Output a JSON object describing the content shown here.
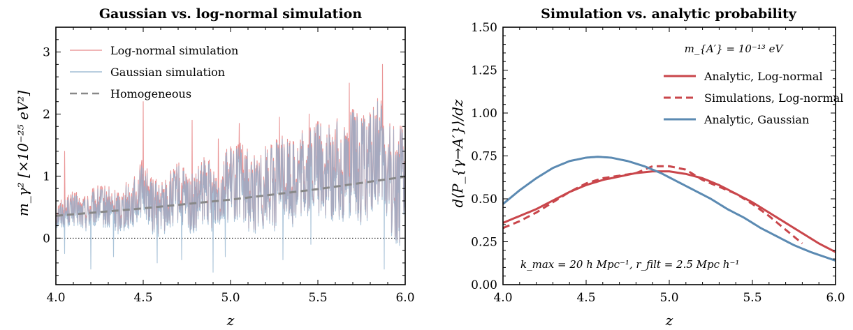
{
  "chart_data": [
    {
      "type": "line",
      "title": "Gaussian vs. log-normal simulation",
      "xlabel": "z",
      "ylabel": "m_γ² [×10⁻²⁵ eV²]",
      "xlim": [
        4.0,
        6.0
      ],
      "ylim": [
        -0.75,
        3.4
      ],
      "x_ticks": [
        "4.0",
        "4.5",
        "5.0",
        "5.5",
        "6.0"
      ],
      "y_ticks": [
        "0",
        "1",
        "2",
        "3"
      ],
      "legend_position": "top-left",
      "reference_line": {
        "y": 0,
        "style": "dotted"
      },
      "series": [
        {
          "name": "Log-normal simulation",
          "color": "#e8898b",
          "style": "solid",
          "noisy": true,
          "x": [
            4.0,
            4.05,
            4.1,
            4.15,
            4.2,
            4.25,
            4.3,
            4.35,
            4.4,
            4.45,
            4.5,
            4.55,
            4.6,
            4.65,
            4.7,
            4.75,
            4.8,
            4.85,
            4.9,
            4.95,
            5.0,
            5.05,
            5.1,
            5.15,
            5.2,
            5.25,
            5.3,
            5.35,
            5.4,
            5.45,
            5.5,
            5.55,
            5.6,
            5.65,
            5.7,
            5.75,
            5.8,
            5.85,
            5.9,
            5.95,
            6.0
          ],
          "y": [
            0.4,
            0.45,
            0.5,
            0.42,
            0.48,
            0.55,
            0.5,
            0.45,
            0.55,
            0.6,
            0.9,
            0.55,
            0.5,
            0.6,
            0.75,
            0.6,
            0.55,
            0.8,
            0.7,
            0.85,
            0.9,
            0.95,
            0.8,
            0.75,
            0.9,
            0.85,
            1.05,
            0.95,
            1.0,
            1.1,
            1.2,
            1.0,
            1.1,
            1.15,
            1.25,
            1.1,
            1.2,
            1.4,
            1.0,
            0.9,
            0.8
          ],
          "peaks": [
            {
              "x": 4.05,
              "y": 1.4
            },
            {
              "x": 4.5,
              "y": 2.2
            },
            {
              "x": 4.78,
              "y": 1.9
            },
            {
              "x": 4.93,
              "y": 1.6
            },
            {
              "x": 5.05,
              "y": 1.85
            },
            {
              "x": 5.07,
              "y": 1.5
            },
            {
              "x": 5.28,
              "y": 1.95
            },
            {
              "x": 5.36,
              "y": 1.3
            },
            {
              "x": 5.45,
              "y": 2.0
            },
            {
              "x": 5.6,
              "y": 1.75
            },
            {
              "x": 5.68,
              "y": 2.5
            },
            {
              "x": 5.87,
              "y": 2.8
            },
            {
              "x": 5.97,
              "y": 1.6
            }
          ]
        },
        {
          "name": "Gaussian simulation",
          "color": "#8fb0cc",
          "style": "solid",
          "noisy": true,
          "x": [
            4.0,
            4.05,
            4.1,
            4.15,
            4.2,
            4.25,
            4.3,
            4.35,
            4.4,
            4.45,
            4.5,
            4.55,
            4.6,
            4.65,
            4.7,
            4.75,
            4.8,
            4.85,
            4.9,
            4.95,
            5.0,
            5.05,
            5.1,
            5.15,
            5.2,
            5.25,
            5.3,
            5.35,
            5.4,
            5.45,
            5.5,
            5.55,
            5.6,
            5.65,
            5.7,
            5.75,
            5.8,
            5.85,
            5.9,
            5.95,
            6.0
          ],
          "y": [
            0.35,
            0.4,
            0.45,
            0.38,
            0.42,
            0.5,
            0.45,
            0.4,
            0.5,
            0.55,
            0.8,
            0.5,
            0.45,
            0.55,
            0.7,
            0.55,
            0.5,
            0.75,
            0.65,
            0.8,
            0.85,
            0.9,
            0.75,
            0.7,
            0.85,
            0.8,
            1.0,
            0.9,
            0.95,
            1.05,
            1.15,
            0.95,
            1.05,
            1.1,
            1.2,
            1.05,
            1.15,
            1.35,
            0.95,
            0.85,
            0.75
          ],
          "dips": [
            {
              "x": 4.05,
              "y": -0.25
            },
            {
              "x": 4.2,
              "y": -0.5
            },
            {
              "x": 4.33,
              "y": -0.3
            },
            {
              "x": 4.58,
              "y": -0.4
            },
            {
              "x": 4.72,
              "y": -0.35
            },
            {
              "x": 4.9,
              "y": -0.55
            },
            {
              "x": 4.97,
              "y": -0.3
            },
            {
              "x": 5.3,
              "y": -0.35
            },
            {
              "x": 5.46,
              "y": -0.1
            },
            {
              "x": 5.88,
              "y": -0.5
            }
          ]
        },
        {
          "name": "Homogeneous",
          "color": "#888888",
          "style": "dashed",
          "x": [
            4.0,
            4.5,
            5.0,
            5.5,
            6.0
          ],
          "y": [
            0.36,
            0.48,
            0.62,
            0.79,
            0.99
          ]
        }
      ]
    },
    {
      "type": "line",
      "title": "Simulation vs. analytic probability",
      "xlabel": "z",
      "ylabel": "d⟨P_{γ→A′}⟩/dz",
      "xlim": [
        4.0,
        6.0
      ],
      "ylim": [
        0.0,
        1.5
      ],
      "x_ticks": [
        "4.0",
        "4.5",
        "5.0",
        "5.5",
        "6.0"
      ],
      "y_ticks": [
        "0.00",
        "0.25",
        "0.50",
        "0.75",
        "1.00",
        "1.25",
        "1.50"
      ],
      "legend_position": "top-right",
      "legend_title": "m_{A′} = 10⁻¹³ eV",
      "annotation": "k_max = 20 h Mpc⁻¹, r_filt = 2.5 Mpc h⁻¹",
      "series": [
        {
          "name": "Analytic, Log-normal",
          "color": "#c9464b",
          "style": "solid",
          "x": [
            4.0,
            4.1,
            4.2,
            4.3,
            4.4,
            4.5,
            4.6,
            4.7,
            4.8,
            4.9,
            5.0,
            5.1,
            5.2,
            5.3,
            5.4,
            5.5,
            5.6,
            5.7,
            5.8,
            5.9,
            6.0
          ],
          "y": [
            0.36,
            0.4,
            0.44,
            0.49,
            0.54,
            0.58,
            0.61,
            0.63,
            0.65,
            0.66,
            0.66,
            0.645,
            0.62,
            0.58,
            0.53,
            0.48,
            0.42,
            0.36,
            0.3,
            0.24,
            0.19
          ]
        },
        {
          "name": "Simulations, Log-normal",
          "color": "#c9464b",
          "style": "dashed",
          "x": [
            4.0,
            4.1,
            4.2,
            4.3,
            4.4,
            4.5,
            4.6,
            4.7,
            4.8,
            4.9,
            5.0,
            5.1,
            5.2,
            5.3,
            5.4,
            5.5,
            5.6,
            5.7,
            5.8
          ],
          "y": [
            0.33,
            0.37,
            0.42,
            0.48,
            0.54,
            0.59,
            0.62,
            0.635,
            0.65,
            0.69,
            0.69,
            0.67,
            0.61,
            0.57,
            0.53,
            0.47,
            0.4,
            0.32,
            0.24
          ]
        },
        {
          "name": "Analytic, Gaussian",
          "color": "#5b8ab2",
          "style": "solid",
          "x": [
            4.0,
            4.1,
            4.2,
            4.3,
            4.4,
            4.5,
            4.57,
            4.65,
            4.75,
            4.85,
            4.95,
            5.05,
            5.15,
            5.25,
            5.35,
            5.45,
            5.55,
            5.65,
            5.75,
            5.85,
            6.0
          ],
          "y": [
            0.47,
            0.55,
            0.62,
            0.68,
            0.72,
            0.74,
            0.745,
            0.74,
            0.72,
            0.69,
            0.65,
            0.6,
            0.55,
            0.5,
            0.44,
            0.39,
            0.33,
            0.28,
            0.23,
            0.19,
            0.14
          ]
        }
      ]
    }
  ]
}
